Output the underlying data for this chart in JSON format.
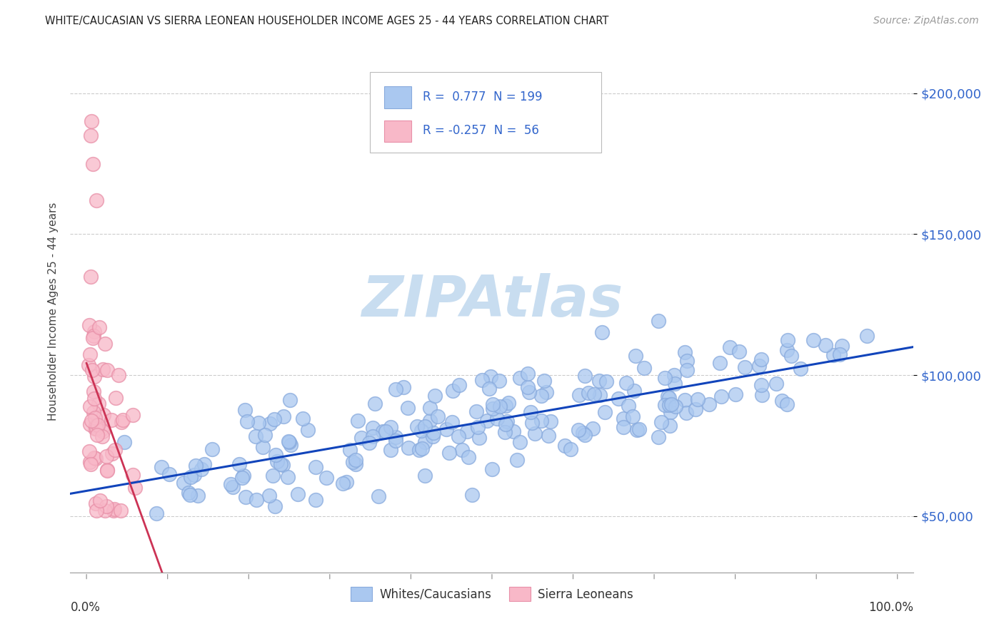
{
  "title": "WHITE/CAUCASIAN VS SIERRA LEONEAN HOUSEHOLDER INCOME AGES 25 - 44 YEARS CORRELATION CHART",
  "source": "Source: ZipAtlas.com",
  "ylabel": "Householder Income Ages 25 - 44 years",
  "legend_bottom": [
    "Whites/Caucasians",
    "Sierra Leoneans"
  ],
  "watermark": "ZIPAtlas",
  "ylim": [
    30000,
    215000
  ],
  "xlim": [
    -0.02,
    1.02
  ],
  "blue_R": 0.777,
  "blue_N": 199,
  "pink_R": -0.257,
  "pink_N": 56,
  "blue_color": "#aac8f0",
  "blue_edge_color": "#88aadd",
  "pink_color": "#f8b8c8",
  "pink_edge_color": "#e890a8",
  "blue_line_color": "#1144bb",
  "pink_line_color": "#cc3355",
  "background_color": "#ffffff",
  "grid_color": "#cccccc",
  "title_color": "#222222",
  "tick_label_color": "#3366cc",
  "watermark_color": "#c8ddf0",
  "fig_width": 14.06,
  "fig_height": 8.92,
  "yticks": [
    50000,
    100000,
    150000,
    200000
  ],
  "ytick_labels": [
    "$50,000",
    "$100,000",
    "$150,000",
    "$200,000"
  ]
}
